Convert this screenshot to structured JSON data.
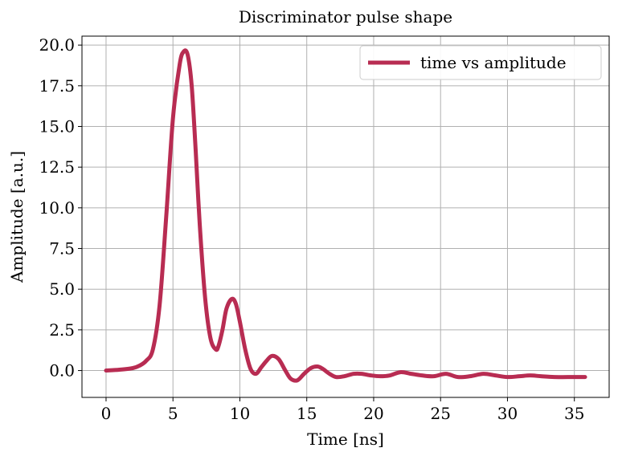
{
  "chart_data": {
    "type": "line",
    "title": "Discriminator pulse shape",
    "xlabel": "Time [ns]",
    "ylabel": "Amplitude [a.u.]",
    "xlim": [
      -1.8,
      37.6
    ],
    "ylim": [
      -1.65,
      20.55
    ],
    "xticks": [
      0,
      5,
      10,
      15,
      20,
      25,
      30,
      35
    ],
    "xtick_labels": [
      "0",
      "5",
      "10",
      "15",
      "20",
      "25",
      "30",
      "35"
    ],
    "yticks": [
      0.0,
      2.5,
      5.0,
      7.5,
      10.0,
      12.5,
      15.0,
      17.5,
      20.0
    ],
    "ytick_labels": [
      "0.0",
      "2.5",
      "5.0",
      "7.5",
      "10.0",
      "12.5",
      "15.0",
      "17.5",
      "20.0"
    ],
    "grid": true,
    "legend_position": "top-right",
    "series": [
      {
        "name": "time vs amplitude",
        "color": "#b82c52",
        "x": [
          0.0,
          1.0,
          2.0,
          2.5,
          3.0,
          3.5,
          4.0,
          4.5,
          5.0,
          5.5,
          5.8,
          6.1,
          6.4,
          6.7,
          7.0,
          7.4,
          7.8,
          8.2,
          8.4,
          8.7,
          9.0,
          9.4,
          9.7,
          10.0,
          10.4,
          10.8,
          11.2,
          11.6,
          12.0,
          12.4,
          12.9,
          13.4,
          13.8,
          14.3,
          14.8,
          15.3,
          15.8,
          16.2,
          16.7,
          17.2,
          17.8,
          18.5,
          19.1,
          19.8,
          20.5,
          21.2,
          22.0,
          22.8,
          23.6,
          24.5,
          25.4,
          26.3,
          27.2,
          28.2,
          29.1,
          30.0,
          30.9,
          31.7,
          32.5,
          33.5,
          34.5,
          35.8
        ],
        "y": [
          0.0,
          0.05,
          0.15,
          0.3,
          0.6,
          1.3,
          4.0,
          9.5,
          15.5,
          18.8,
          19.6,
          19.4,
          17.5,
          13.5,
          9.0,
          4.5,
          2.0,
          1.3,
          1.5,
          2.5,
          3.8,
          4.4,
          4.1,
          3.0,
          1.3,
          0.1,
          -0.2,
          0.2,
          0.6,
          0.9,
          0.7,
          0.0,
          -0.5,
          -0.6,
          -0.2,
          0.15,
          0.25,
          0.1,
          -0.2,
          -0.4,
          -0.35,
          -0.2,
          -0.2,
          -0.3,
          -0.35,
          -0.3,
          -0.1,
          -0.2,
          -0.3,
          -0.35,
          -0.2,
          -0.4,
          -0.35,
          -0.2,
          -0.3,
          -0.4,
          -0.35,
          -0.3,
          -0.35,
          -0.4,
          -0.4,
          -0.4
        ]
      }
    ]
  }
}
